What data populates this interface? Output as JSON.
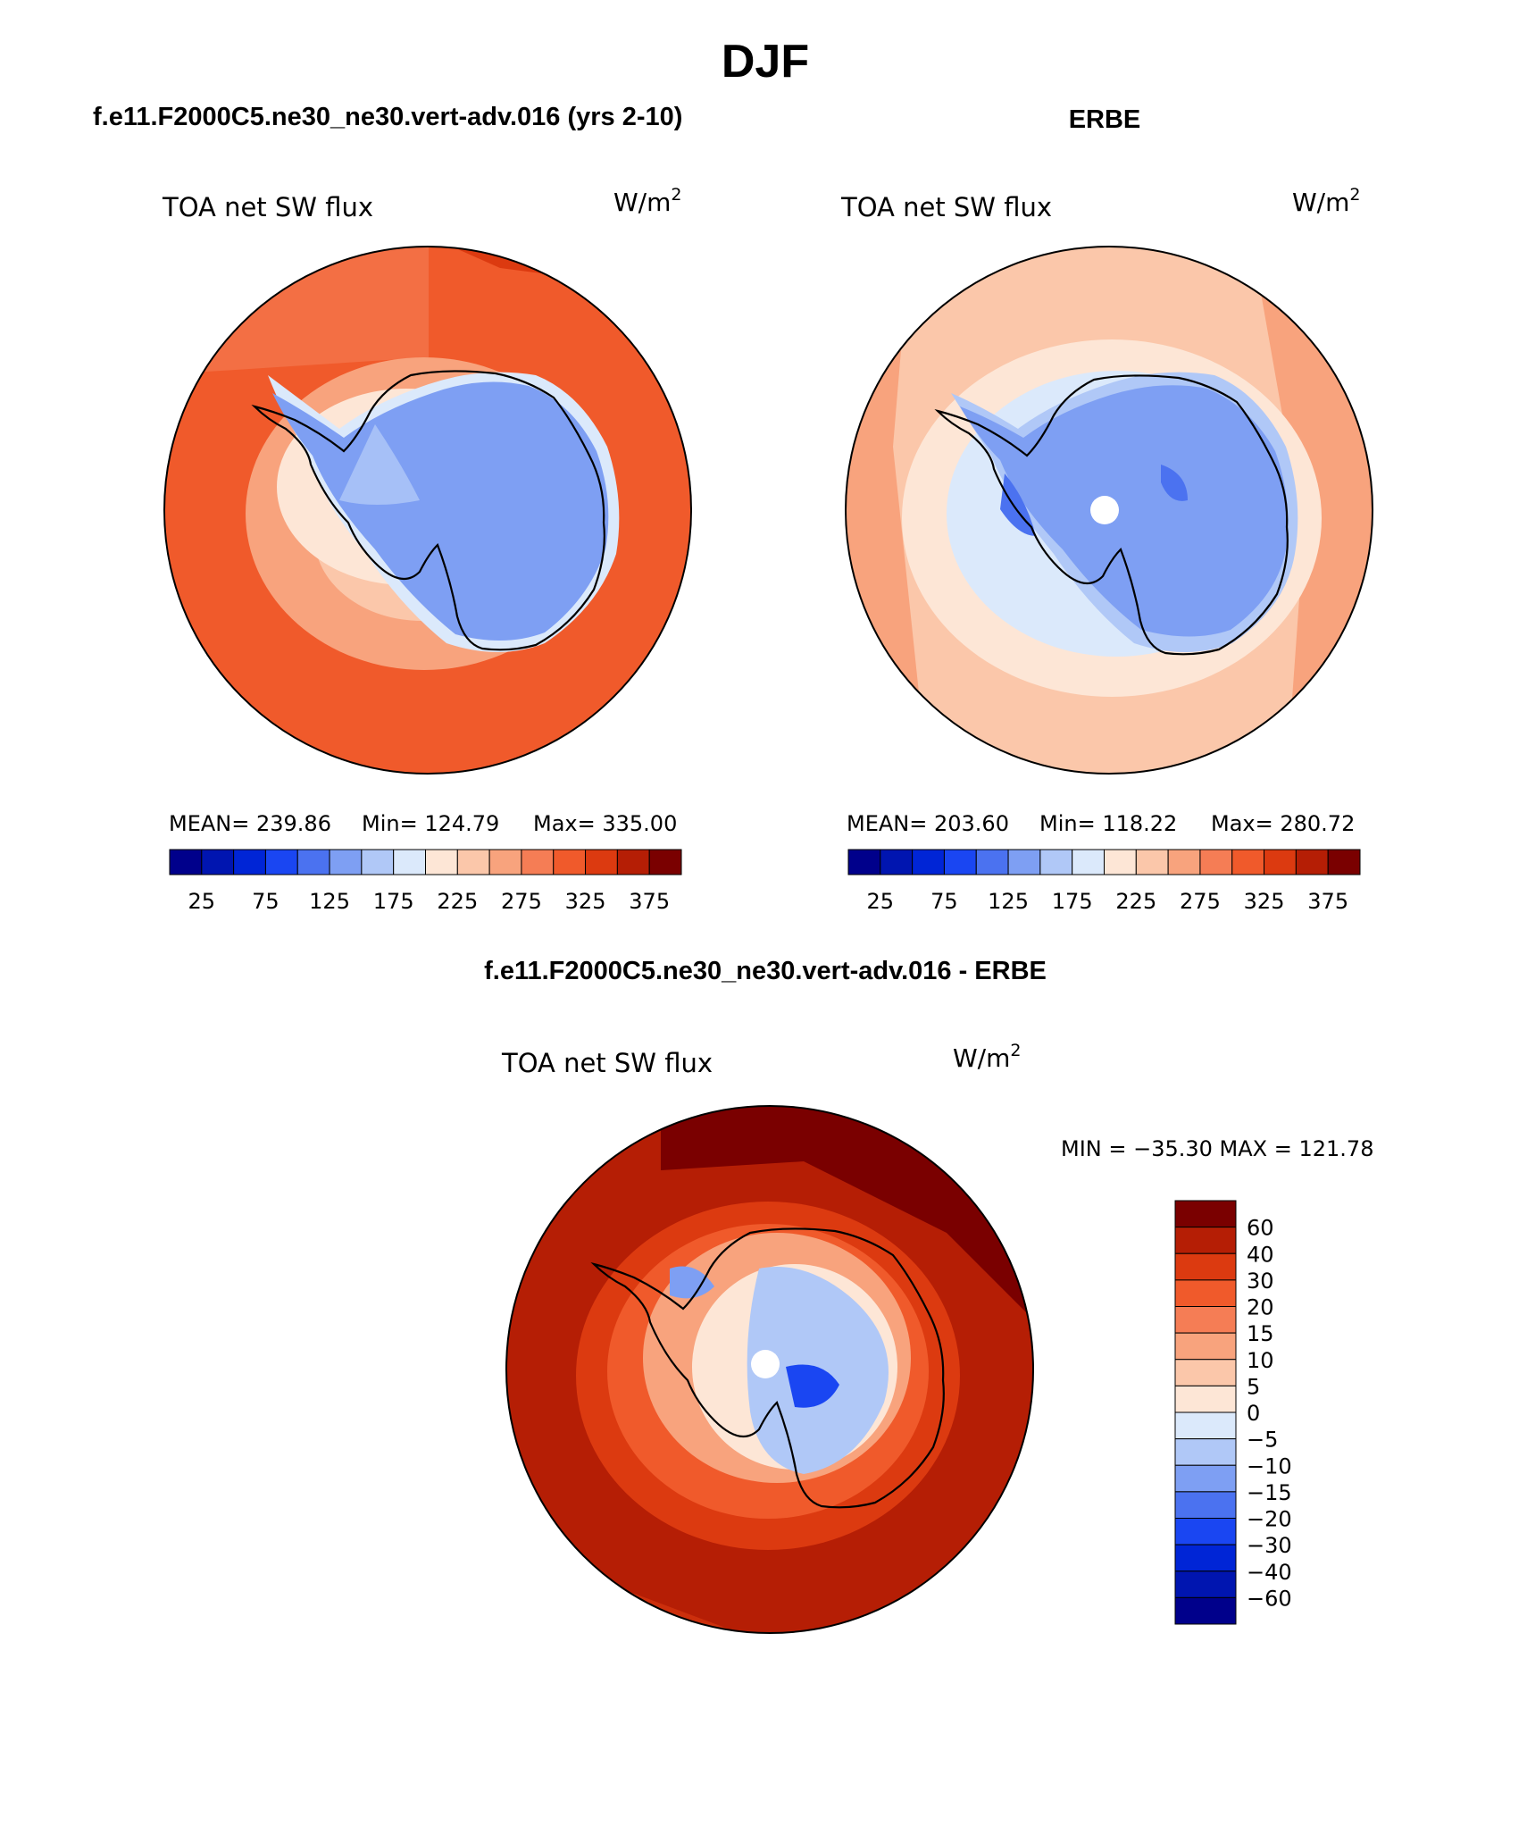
{
  "figure": {
    "title": "DJF",
    "colors": {
      "lowest": "#00008b",
      "neutral_low": "#dbe9fb",
      "neutral_high": "#fde6d6",
      "highest": "#7a0000",
      "land_outline": "#000000",
      "missing": "#ffffff"
    }
  },
  "panels": {
    "model": {
      "header": "f.e11.F2000C5.ne30_ne30.vert-adv.016 (yrs 2-10)",
      "variable": "TOA net SW flux",
      "units_base": "W/m",
      "units_exp": "2",
      "stats": {
        "mean": "MEAN= 239.86",
        "min": "Min= 124.79",
        "max": "Max= 335.00"
      },
      "colorbar_ticks": [
        "25",
        "75",
        "125",
        "175",
        "225",
        "275",
        "325",
        "375"
      ]
    },
    "obs": {
      "header": "ERBE",
      "variable": "TOA net SW flux",
      "units_base": "W/m",
      "units_exp": "2",
      "stats": {
        "mean": "MEAN= 203.60",
        "min": "Min= 118.22",
        "max": "Max= 280.72"
      },
      "colorbar_ticks": [
        "25",
        "75",
        "125",
        "175",
        "225",
        "275",
        "325",
        "375"
      ]
    },
    "diff": {
      "header": "f.e11.F2000C5.ne30_ne30.vert-adv.016 - ERBE",
      "variable": "TOA net SW flux",
      "units_base": "W/m",
      "units_exp": "2",
      "minmax": "MIN = −35.30 MAX = 121.78",
      "colorbar_ticks": [
        "60",
        "40",
        "30",
        "20",
        "15",
        "10",
        "5",
        "0",
        "−5",
        "−10",
        "−15",
        "−20",
        "−30",
        "−40",
        "−60"
      ]
    }
  },
  "chart_data": [
    {
      "type": "heatmap",
      "projection": "south-polar-stereographic",
      "title": "f.e11.F2000C5.ne30_ne30.vert-adv.016 (yrs 2-10)",
      "variable": "TOA net SW flux",
      "units": "W/m^2",
      "mean": 239.86,
      "min": 124.79,
      "max": 335.0,
      "levels": [
        25,
        50,
        75,
        100,
        125,
        150,
        175,
        200,
        225,
        250,
        275,
        300,
        325,
        350,
        375
      ],
      "palette": [
        "#00008b",
        "#0015b0",
        "#0025d6",
        "#1a46f2",
        "#4b72f0",
        "#7e9ff3",
        "#b0c8f7",
        "#dbe9fb",
        "#fde6d6",
        "#fbc7aa",
        "#f8a37d",
        "#f57d55",
        "#f05a2b",
        "#dc3a10",
        "#b51e05",
        "#7a0000"
      ]
    },
    {
      "type": "heatmap",
      "projection": "south-polar-stereographic",
      "title": "ERBE",
      "variable": "TOA net SW flux",
      "units": "W/m^2",
      "mean": 203.6,
      "min": 118.22,
      "max": 280.72,
      "levels": [
        25,
        50,
        75,
        100,
        125,
        150,
        175,
        200,
        225,
        250,
        275,
        300,
        325,
        350,
        375
      ],
      "palette": [
        "#00008b",
        "#0015b0",
        "#0025d6",
        "#1a46f2",
        "#4b72f0",
        "#7e9ff3",
        "#b0c8f7",
        "#dbe9fb",
        "#fde6d6",
        "#fbc7aa",
        "#f8a37d",
        "#f57d55",
        "#f05a2b",
        "#dc3a10",
        "#b51e05",
        "#7a0000"
      ]
    },
    {
      "type": "heatmap",
      "projection": "south-polar-stereographic",
      "title": "f.e11.F2000C5.ne30_ne30.vert-adv.016 - ERBE",
      "variable": "TOA net SW flux",
      "units": "W/m^2",
      "min": -35.3,
      "max": 121.78,
      "levels": [
        -60,
        -40,
        -30,
        -20,
        -15,
        -10,
        -5,
        0,
        5,
        10,
        15,
        20,
        30,
        40,
        60
      ],
      "palette": [
        "#00008b",
        "#0015b0",
        "#0025d6",
        "#1a46f2",
        "#4b72f0",
        "#7e9ff3",
        "#b0c8f7",
        "#dbe9fb",
        "#fde6d6",
        "#fbc7aa",
        "#f8a37d",
        "#f57d55",
        "#f05a2b",
        "#dc3a10",
        "#b51e05",
        "#7a0000"
      ]
    }
  ]
}
